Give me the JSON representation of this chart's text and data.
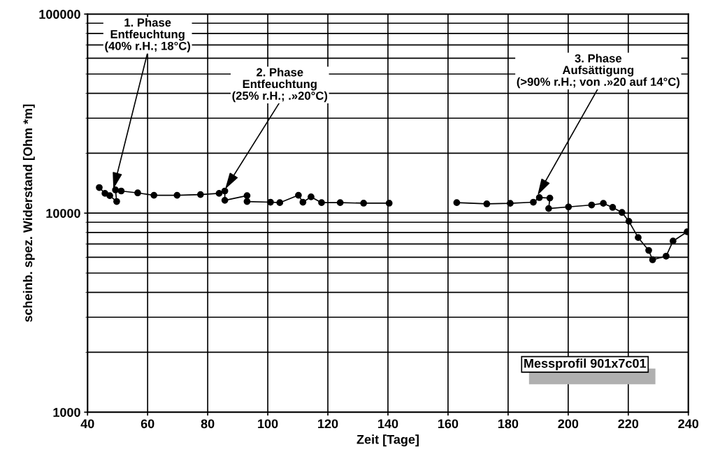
{
  "chart_data": {
    "type": "line",
    "xlabel": "Zeit [Tage]",
    "ylabel": "scheinb. spez. Widerstand [Ohm *m]",
    "xlim": [
      40,
      240
    ],
    "xticks": [
      40,
      60,
      80,
      100,
      120,
      140,
      160,
      180,
      200,
      220,
      240
    ],
    "ylim": [
      1000,
      100000
    ],
    "yticks": [
      1000,
      10000,
      100000
    ],
    "log": true,
    "grid": true,
    "marker": "circle",
    "line_style": "solid",
    "series": [
      {
        "color": "#000000",
        "x": [
          43.9,
          45.8,
          47.4,
          49.7,
          49.3,
          51.2,
          56.7,
          62.1,
          69.8,
          77.6,
          83.8,
          85.7,
          85.7,
          93.1,
          93.1,
          100.9,
          104,
          110.2,
          111.7,
          114.4,
          117.9,
          124.1,
          131.9,
          140.4,
          150,
          162.9,
          172.9,
          180.7,
          188.4,
          190.4,
          193.9,
          193.5,
          200.1,
          207.8,
          211.7,
          214.8,
          217.9,
          220.2,
          223.3,
          226.8,
          228.1,
          232.6,
          234.9,
          239.6
        ],
        "values": [
          13450,
          12570,
          12240,
          11440,
          13080,
          12920,
          12640,
          12300,
          12300,
          12400,
          12570,
          12920,
          11600,
          12240,
          11440,
          11350,
          11290,
          12300,
          11350,
          12070,
          11290,
          11290,
          11220,
          11220,
          null,
          11290,
          11130,
          11200,
          11350,
          11970,
          11910,
          10550,
          10750,
          10990,
          11200,
          10690,
          10080,
          9100,
          7540,
          6500,
          5830,
          6080,
          7240,
          8060
        ]
      }
    ],
    "annotations": [
      {
        "text": "1. Phase\nEntfeuchtung\n(40% r.H.; 18°C)",
        "x": 48.6,
        "y": 13200
      },
      {
        "text": "2. Phase\nEntfeuchtung\n(25% r.H.; .»20°C)",
        "x": 85.8,
        "y": 13200
      },
      {
        "text": "3. Phase\nAufsättigung\n(>90% r.H.; von .»20 auf 14°C)",
        "x": 189.8,
        "y": 12300
      },
      "Messprofil 901x7c01"
    ]
  }
}
